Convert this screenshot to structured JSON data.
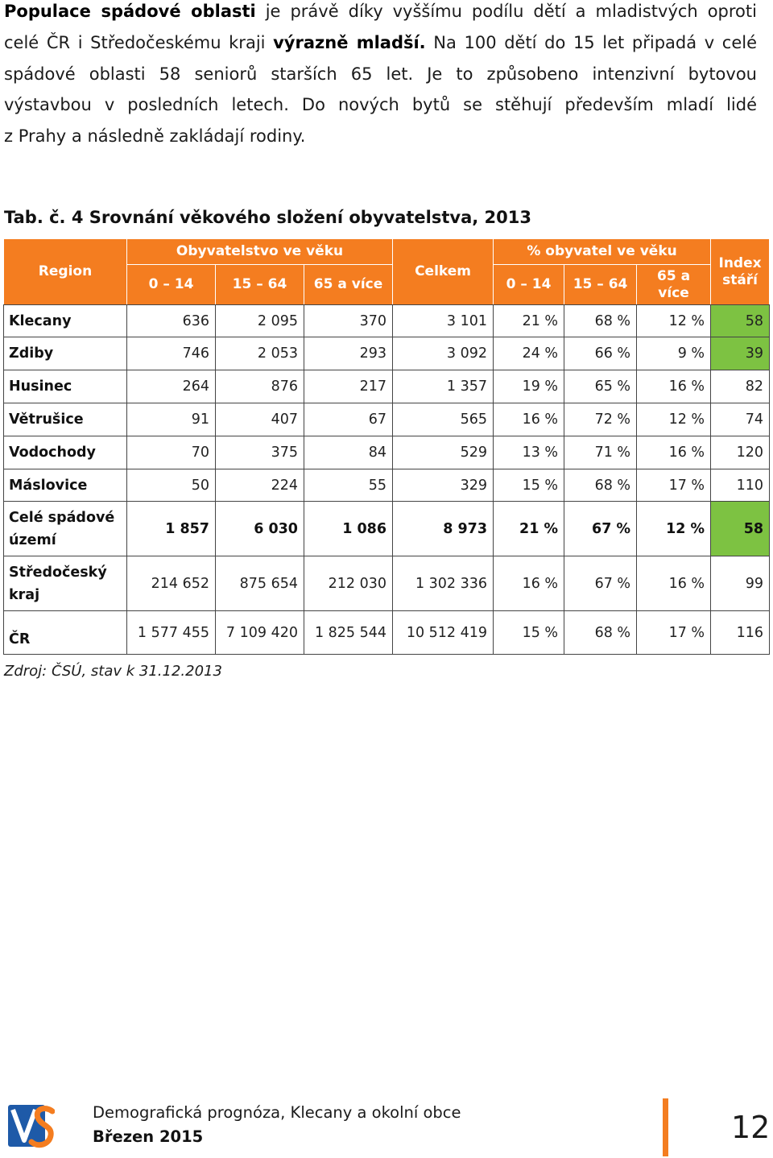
{
  "intro": {
    "line1_bold": "Populace spádové oblasti",
    "line1_rest": " je právě díky vyššímu podílu dětí a mladistvých oproti",
    "line2_start": "celé ČR i Středočeskému kraji ",
    "line2_bold": "výrazně mladší.",
    "line2_end": " Na 100 dětí do 15 let připadá v celé",
    "line3": "spádové oblasti 58 seniorů starších 65 let. Je to způsobeno intenzivní bytovou",
    "line4": "výstavbou v posledních letech. Do nových bytů se stěhují především mladí lidé",
    "line5": "z Prahy a následně zakládají rodiny."
  },
  "table": {
    "caption": "Tab. č. 4 Srovnání věkového složení obyvatelstva, 2013",
    "headers": {
      "region": "Region",
      "population_group": "Obyvatelstvo ve věku",
      "total": "Celkem",
      "percent_group": "% obyvatel ve věku",
      "aging_index": "Index stáří",
      "age_0_14": "0 – 14",
      "age_15_64": "15 – 64",
      "age_65_plus": "65 a více"
    },
    "rows": [
      {
        "region": "Klecany",
        "pop_0_14": "636",
        "pop_15_64": "2 095",
        "pop_65_plus": "370",
        "total": "3 101",
        "pct_0_14": "21 %",
        "pct_15_64": "68 %",
        "pct_65_plus": "12 %",
        "aging_index": "58",
        "index_highlighted": true
      },
      {
        "region": "Zdiby",
        "pop_0_14": "746",
        "pop_15_64": "2 053",
        "pop_65_plus": "293",
        "total": "3 092",
        "pct_0_14": "24 %",
        "pct_15_64": "66 %",
        "pct_65_plus": "9 %",
        "aging_index": "39",
        "index_highlighted": true
      },
      {
        "region": "Husinec",
        "pop_0_14": "264",
        "pop_15_64": "876",
        "pop_65_plus": "217",
        "total": "1 357",
        "pct_0_14": "19 %",
        "pct_15_64": "65 %",
        "pct_65_plus": "16 %",
        "aging_index": "82",
        "index_highlighted": false
      },
      {
        "region": "Větrušice",
        "pop_0_14": "91",
        "pop_15_64": "407",
        "pop_65_plus": "67",
        "total": "565",
        "pct_0_14": "16 %",
        "pct_15_64": "72 %",
        "pct_65_plus": "12 %",
        "aging_index": "74",
        "index_highlighted": false
      },
      {
        "region": "Vodochody",
        "pop_0_14": "70",
        "pop_15_64": "375",
        "pop_65_plus": "84",
        "total": "529",
        "pct_0_14": "13 %",
        "pct_15_64": "71 %",
        "pct_65_plus": "16 %",
        "aging_index": "120",
        "index_highlighted": false
      },
      {
        "region": "Máslovice",
        "pop_0_14": "50",
        "pop_15_64": "224",
        "pop_65_plus": "55",
        "total": "329",
        "pct_0_14": "15 %",
        "pct_15_64": "68 %",
        "pct_65_plus": "17 %",
        "aging_index": "110",
        "index_highlighted": false
      },
      {
        "region": "Celé spádové území",
        "pop_0_14": "1 857",
        "pop_15_64": "6 030",
        "pop_65_plus": "1 086",
        "total": "8 973",
        "pct_0_14": "21 %",
        "pct_15_64": "67 %",
        "pct_65_plus": "12 %",
        "aging_index": "58",
        "index_highlighted": true
      },
      {
        "region": "Středočeský kraj",
        "pop_0_14": "214 652",
        "pop_15_64": "875 654",
        "pop_65_plus": "212 030",
        "total": "1 302 336",
        "pct_0_14": "16 %",
        "pct_15_64": "67 %",
        "pct_65_plus": "16 %",
        "aging_index": "99",
        "index_highlighted": false
      },
      {
        "region": "ČR",
        "pop_0_14": "1 577 455",
        "pop_15_64": "7 109 420",
        "pop_65_plus": "1 825 544",
        "total": "10 512 419",
        "pct_0_14": "15 %",
        "pct_15_64": "68 %",
        "pct_65_plus": "17 %",
        "aging_index": "116",
        "index_highlighted": false
      }
    ],
    "source": "Zdroj: ČSÚ, stav k 31.12.2013"
  },
  "footer": {
    "logo_text": "VS",
    "title": "Demografická prognóza, Klecany a okolní obce",
    "date": "Březen 2015",
    "page_number": "12"
  },
  "colors": {
    "header_orange": "#F47D20",
    "highlight_green": "#7DC242",
    "accent_bar": "#F47D20",
    "logo_blue": "#1E5AA8"
  }
}
